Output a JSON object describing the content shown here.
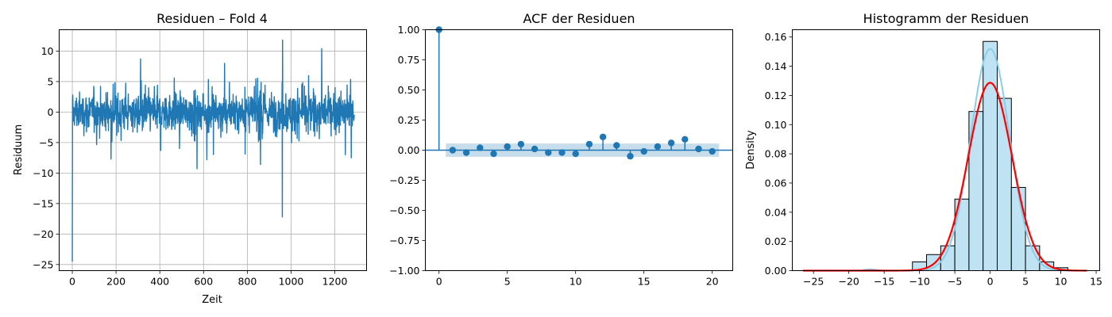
{
  "colors": {
    "series": "#1f77b4",
    "grid": "#b0b0b0",
    "hist_fill": "#bfe3f2",
    "kde": "#87ceeb",
    "normal_fit": "#ff0000"
  },
  "chart_data": [
    {
      "id": "residuals",
      "type": "line",
      "title": "Residuen – Fold 4",
      "xlabel": "Zeit",
      "ylabel": "Residuum",
      "xlim": [
        -60,
        1345
      ],
      "ylim": [
        -26,
        13.5
      ],
      "xticks": [
        0,
        200,
        400,
        600,
        800,
        1000,
        1200
      ],
      "yticks": [
        -25,
        -20,
        -15,
        -10,
        -5,
        0,
        5,
        10
      ],
      "grid": true,
      "n_points": 1290,
      "approx_range": [
        -9,
        8
      ],
      "spikes": [
        {
          "x": 0,
          "y": -24.5
        },
        {
          "x": 960,
          "y": -17.2
        },
        {
          "x": 961,
          "y": 11.8
        },
        {
          "x": 1140,
          "y": 10.4
        },
        {
          "x": 312,
          "y": 8.7
        },
        {
          "x": 570,
          "y": -9.3
        },
        {
          "x": 860,
          "y": -8.6
        },
        {
          "x": 1275,
          "y": -7.5
        }
      ]
    },
    {
      "id": "acf",
      "type": "stem",
      "title": "ACF der Residuen",
      "xlabel": "",
      "ylabel": "",
      "xlim": [
        -1,
        21.5
      ],
      "ylim": [
        -1.0,
        1.0
      ],
      "xticks": [
        0,
        5,
        10,
        15,
        20
      ],
      "yticks": [
        "-1.00",
        "-0.75",
        "-0.50",
        "-0.25",
        "0.00",
        "0.25",
        "0.50",
        "0.75",
        "1.00"
      ],
      "grid": false,
      "confidence_band": 0.055,
      "lags": [
        0,
        1,
        2,
        3,
        4,
        5,
        6,
        7,
        8,
        9,
        10,
        11,
        12,
        13,
        14,
        15,
        16,
        17,
        18,
        19,
        20
      ],
      "values": [
        1.0,
        0.0,
        -0.02,
        0.02,
        -0.03,
        0.03,
        0.05,
        0.01,
        -0.02,
        -0.02,
        -0.03,
        0.05,
        0.11,
        0.04,
        -0.05,
        -0.01,
        0.03,
        0.06,
        0.09,
        0.01,
        -0.01
      ]
    },
    {
      "id": "histogram",
      "type": "bar",
      "title": "Histogramm der Residuen",
      "xlabel": "",
      "ylabel": "Density",
      "xlim": [
        -28,
        15.5
      ],
      "ylim": [
        0,
        0.165
      ],
      "xticks": [
        -25,
        -20,
        -15,
        -10,
        -5,
        0,
        5,
        10,
        15
      ],
      "yticks": [
        "0.00",
        "0.02",
        "0.04",
        "0.06",
        "0.08",
        "0.10",
        "0.12",
        "0.14",
        "0.16"
      ],
      "grid": false,
      "bin_edges": [
        -11,
        -9,
        -7,
        -5,
        -3,
        -1,
        1,
        3,
        5,
        7,
        9,
        11
      ],
      "densities": [
        0.006,
        0.011,
        0.017,
        0.049,
        0.109,
        0.157,
        0.118,
        0.057,
        0.017,
        0.006,
        0.002
      ],
      "normal_fit": {
        "mean": 0.0,
        "std": 3.1,
        "x_range": [
          -26.5,
          13.8
        ]
      },
      "kde_peak": 0.152
    }
  ]
}
